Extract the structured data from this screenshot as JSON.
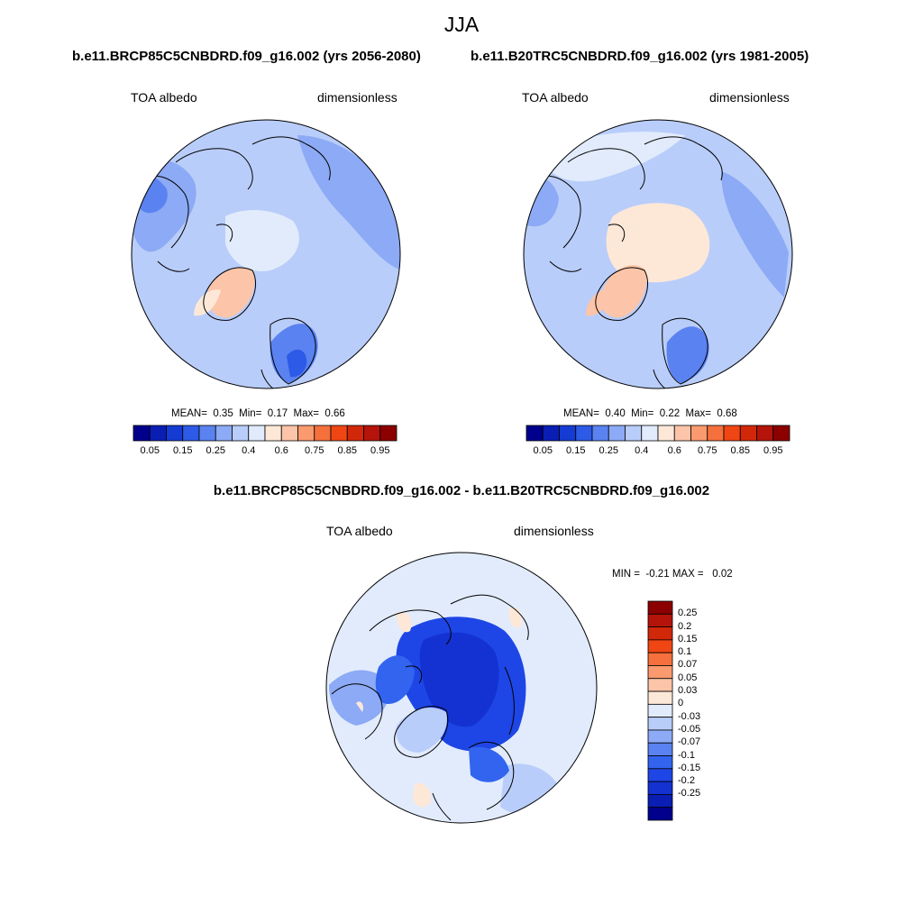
{
  "figure": {
    "title": "JJA",
    "diff_title": "b.e11.BRCP85C5CNBDRD.f09_g16.002 - b.e11.B20TRC5CNBDRD.f09_g16.002"
  },
  "panels": [
    {
      "case": "b.e11.BRCP85C5CNBDRD.f09_g16.002 (yrs 2056-2080)",
      "variable": "TOA albedo",
      "units": "dimensionless",
      "mean_label": "MEAN=",
      "mean": "0.35",
      "min_label": "Min=",
      "min": "0.17",
      "max_label": "Max=",
      "max": "0.66"
    },
    {
      "case": "b.e11.B20TRC5CNBDRD.f09_g16.002 (yrs 1981-2005)",
      "variable": "TOA albedo",
      "units": "dimensionless",
      "mean_label": "MEAN=",
      "mean": "0.40",
      "min_label": "Min=",
      "min": "0.22",
      "max_label": "Max=",
      "max": "0.68"
    },
    {
      "variable": "TOA albedo",
      "units": "dimensionless",
      "min_label": "MIN =",
      "min": "-0.21",
      "max_label": "MAX =",
      "max": "0.02"
    }
  ],
  "colorbar_abs": {
    "colors": [
      "#00008c",
      "#0a1eb4",
      "#143cd2",
      "#2d5ae6",
      "#5a82f0",
      "#8caaf5",
      "#b9cdfa",
      "#e1ebfc",
      "#fde8d8",
      "#fcc4a8",
      "#fa9a6e",
      "#f5703c",
      "#f04614",
      "#d2280a",
      "#b4140a",
      "#8c0000"
    ],
    "tick_labels": [
      "0.05",
      "0.15",
      "0.25",
      "0.4",
      "0.6",
      "0.75",
      "0.85",
      "0.95"
    ]
  },
  "colorbar_diff": {
    "colors": [
      "#00008c",
      "#0a1eb4",
      "#1432d2",
      "#1e46e6",
      "#3264f0",
      "#5a82f0",
      "#8caaf5",
      "#b9cdfa",
      "#e1ebfc",
      "#fde8d8",
      "#fcc4a8",
      "#fa9a6e",
      "#f5703c",
      "#f04614",
      "#d2280a",
      "#b4140a",
      "#8c0000"
    ],
    "tick_labels": [
      "0.25",
      "0.2",
      "0.15",
      "0.1",
      "0.07",
      "0.05",
      "0.03",
      "0",
      "-0.03",
      "-0.05",
      "-0.07",
      "-0.1",
      "-0.15",
      "-0.2",
      "-0.25"
    ]
  }
}
